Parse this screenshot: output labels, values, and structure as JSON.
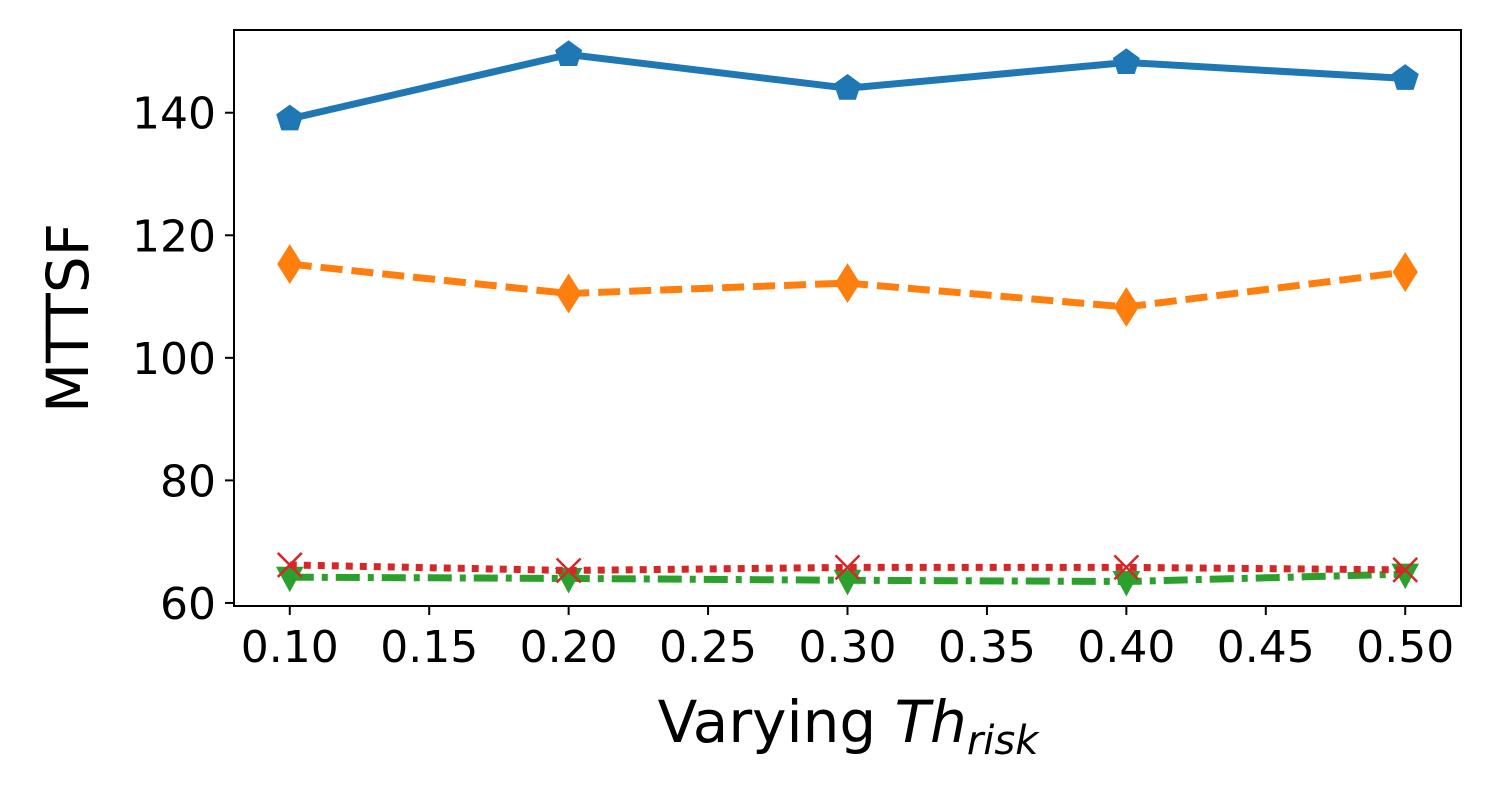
{
  "chart_data": {
    "type": "line",
    "title": "",
    "xlabel": {
      "prefix": "Varying ",
      "symbol": "Th",
      "subscript": "risk"
    },
    "ylabel": "MTTSF",
    "x": [
      0.1,
      0.2,
      0.3,
      0.4,
      0.5
    ],
    "xlim": [
      0.08,
      0.52
    ],
    "ylim": [
      59.5,
      153.5
    ],
    "xticks": [
      0.1,
      0.15,
      0.2,
      0.25,
      0.3,
      0.35,
      0.4,
      0.45,
      0.5
    ],
    "xtick_labels": [
      "0.10",
      "0.15",
      "0.20",
      "0.25",
      "0.30",
      "0.35",
      "0.40",
      "0.45",
      "0.50"
    ],
    "yticks": [
      60,
      80,
      100,
      120,
      140
    ],
    "ytick_labels": [
      "60",
      "80",
      "100",
      "120",
      "140"
    ],
    "grid": false,
    "legend": "none",
    "series": [
      {
        "values": [
          139,
          149.5,
          144,
          148.2,
          145.6
        ],
        "color": "#1f77b4",
        "dash": "solid",
        "marker": "pentagon"
      },
      {
        "values": [
          115.3,
          110.5,
          112.2,
          108.3,
          114
        ],
        "color": "#ff7f0e",
        "dash": "dashed",
        "marker": "thin-diamond"
      },
      {
        "values": [
          66.2,
          65.3,
          65.8,
          65.8,
          65.4
        ],
        "color": "#d62728",
        "dash": "dotted",
        "marker": "x"
      },
      {
        "values": [
          64.2,
          64.0,
          63.7,
          63.5,
          64.7
        ],
        "color": "#2ca02c",
        "dash": "dashdot",
        "marker": "triangle-down"
      }
    ]
  }
}
